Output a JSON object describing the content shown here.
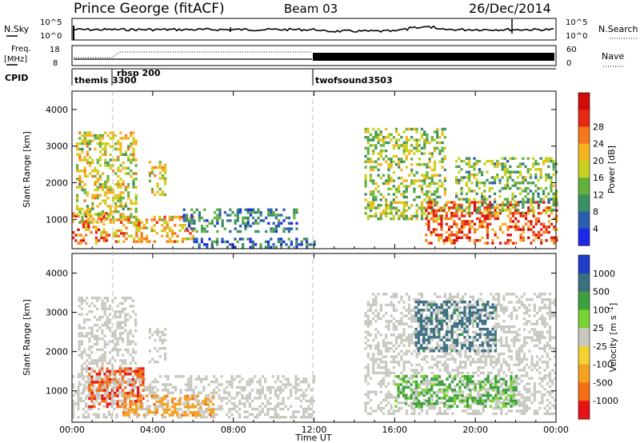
{
  "header": {
    "station": "Prince George (fitACF)",
    "beam": "Beam 03",
    "date": "26/Dec/2014"
  },
  "top_panels": {
    "nsky_label": "N.Sky",
    "nsearch_label": "N.Search",
    "nsky_ticks": [
      "10^5",
      "10^0"
    ],
    "nsearch_ticks": [
      "10^5",
      "10^0"
    ],
    "freq_label_1": "Freq.",
    "freq_label_2": "[MHz]",
    "freq_ticks": [
      "18",
      "8"
    ],
    "nave_label": "Nave",
    "nave_ticks": [
      "60",
      "0"
    ],
    "cpid_label": "CPID",
    "cpid_segments": [
      {
        "name": "themis",
        "id": "3300",
        "start_h": 0.0
      },
      {
        "name": "rbsp 200",
        "id": "",
        "start_h": 1.55
      },
      {
        "name": "twofsound",
        "id": "3503",
        "start_h": 12.0
      }
    ]
  },
  "time_axis": {
    "label": "Time UT",
    "ticks": [
      "00:00",
      "04:00",
      "08:00",
      "12:00",
      "16:00",
      "20:00",
      "00:00"
    ],
    "range_h": [
      0,
      24
    ]
  },
  "chart_data": [
    {
      "type": "heatmap",
      "title": "",
      "xlabel": "",
      "ylabel": "Slant Range [km]",
      "yticks": [
        "1000",
        "2000",
        "3000",
        "4000"
      ],
      "ylim": [
        200,
        4500
      ],
      "colorbar": {
        "label": "Power [dB]",
        "ticks": [
          "4",
          "8",
          "12",
          "16",
          "20",
          "24",
          "28"
        ],
        "colors": [
          "#1e28e6",
          "#2b5fb0",
          "#3d8f64",
          "#64b23c",
          "#c8d21e",
          "#f5b41e",
          "#f5781e",
          "#e62814",
          "#d20a0a"
        ]
      },
      "regions": [
        {
          "t0": 0.0,
          "t1": 1.9,
          "r0": 350,
          "r1": 1200,
          "value": 26
        },
        {
          "t0": 0.2,
          "t1": 3.2,
          "r0": 900,
          "r1": 3400,
          "value": 18
        },
        {
          "t0": 3.8,
          "t1": 4.6,
          "r0": 1700,
          "r1": 2600,
          "value": 19
        },
        {
          "t0": 2.0,
          "t1": 6.0,
          "r0": 400,
          "r1": 1100,
          "value": 22
        },
        {
          "t0": 5.5,
          "t1": 11.2,
          "r0": 700,
          "r1": 1300,
          "value": 9
        },
        {
          "t0": 6.0,
          "t1": 12.0,
          "r0": 250,
          "r1": 500,
          "value": 6
        },
        {
          "t0": 14.5,
          "t1": 18.5,
          "r0": 1000,
          "r1": 3500,
          "value": 16
        },
        {
          "t0": 17.5,
          "t1": 24.0,
          "r0": 350,
          "r1": 1500,
          "value": 28
        },
        {
          "t0": 19.0,
          "t1": 24.0,
          "r0": 1200,
          "r1": 2700,
          "value": 14
        }
      ]
    },
    {
      "type": "heatmap",
      "title": "",
      "xlabel": "Time UT",
      "ylabel": "Slant Range [km]",
      "yticks": [
        "1000",
        "2000",
        "3000",
        "4000"
      ],
      "ylim": [
        200,
        4500
      ],
      "colorbar": {
        "label": "Velocity [m s^-1]",
        "ticks": [
          "1000",
          "500",
          "100",
          "25",
          "-25",
          "-100",
          "-500",
          "-1000"
        ],
        "colors": [
          "#1e3cc8",
          "#3c6e82",
          "#3ca03c",
          "#78d232",
          "#c8c8c0",
          "#f5d232",
          "#f5a01e",
          "#f56e14",
          "#e61414"
        ]
      },
      "regions": [
        {
          "t0": 0.0,
          "t1": 12.0,
          "r0": 350,
          "r1": 1400,
          "value": 0
        },
        {
          "t0": 0.3,
          "t1": 3.2,
          "r0": 900,
          "r1": 3400,
          "value": 0
        },
        {
          "t0": 3.8,
          "t1": 4.6,
          "r0": 1700,
          "r1": 2600,
          "value": 0
        },
        {
          "t0": 0.8,
          "t1": 3.5,
          "r0": 600,
          "r1": 1600,
          "value": -900
        },
        {
          "t0": 2.5,
          "t1": 7.0,
          "r0": 400,
          "r1": 900,
          "value": -400
        },
        {
          "t0": 14.5,
          "t1": 24.0,
          "r0": 400,
          "r1": 3500,
          "value": 0
        },
        {
          "t0": 16.0,
          "t1": 22.0,
          "r0": 600,
          "r1": 1400,
          "value": 120
        },
        {
          "t0": 17.0,
          "t1": 21.0,
          "r0": 2000,
          "r1": 3300,
          "value": 700
        }
      ]
    }
  ]
}
